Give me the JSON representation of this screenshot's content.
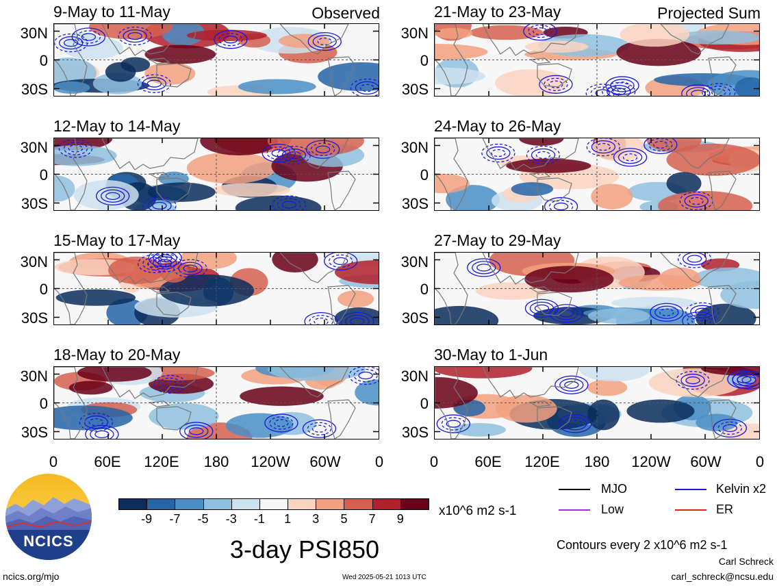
{
  "chart_data": {
    "type": "heatmap",
    "title": "3-day PSI850",
    "variable": "PSI850",
    "units": "x10^6 m2 s-1",
    "colorbar": {
      "labels": [
        "-9",
        "-7",
        "-5",
        "-3",
        "-1",
        "1",
        "3",
        "5",
        "7",
        "9"
      ],
      "colors": [
        "#0b2d5c",
        "#2465a8",
        "#4a8ec6",
        "#8fbfde",
        "#cde2ef",
        "#f7f7f7",
        "#fad4c0",
        "#f2a07f",
        "#d6604f",
        "#b2202b",
        "#6a0019"
      ]
    },
    "y_ticks": [
      "30N",
      "0",
      "30S"
    ],
    "x_ticks": [
      "0",
      "60E",
      "120E",
      "180",
      "120W",
      "60W",
      "0"
    ],
    "panels": [
      {
        "title": "9-May to 11-May",
        "tag": "Observed",
        "column": "left",
        "row": 0
      },
      {
        "title": "12-May to 14-May",
        "tag": "",
        "column": "left",
        "row": 1
      },
      {
        "title": "15-May to 17-May",
        "tag": "",
        "column": "left",
        "row": 2
      },
      {
        "title": "18-May to 20-May",
        "tag": "",
        "column": "left",
        "row": 3
      },
      {
        "title": "21-May to 23-May",
        "tag": "Projected Sum",
        "column": "right",
        "row": 0
      },
      {
        "title": "24-May to 26-May",
        "tag": "",
        "column": "right",
        "row": 1
      },
      {
        "title": "27-May to 29-May",
        "tag": "",
        "column": "right",
        "row": 2
      },
      {
        "title": "30-May to 1-Jun",
        "tag": "",
        "column": "right",
        "row": 3
      }
    ],
    "contour_legend": [
      {
        "label": "MJO",
        "color": "#000000"
      },
      {
        "label": "Kelvin x2",
        "color": "#1a1adc"
      },
      {
        "label": "Low",
        "color": "#9b30d9"
      },
      {
        "label": "ER",
        "color": "#e0201c"
      }
    ],
    "contour_note": "Contours every 2 x10^6 m2 s-1"
  },
  "footer": {
    "site": "ncics.org/mjo",
    "timestamp": "Wed 2025-05-21 1013 UTC",
    "author": "Carl Schreck",
    "email": "carl_schreck@ncsu.edu"
  },
  "logo": {
    "text": "NCICS"
  }
}
